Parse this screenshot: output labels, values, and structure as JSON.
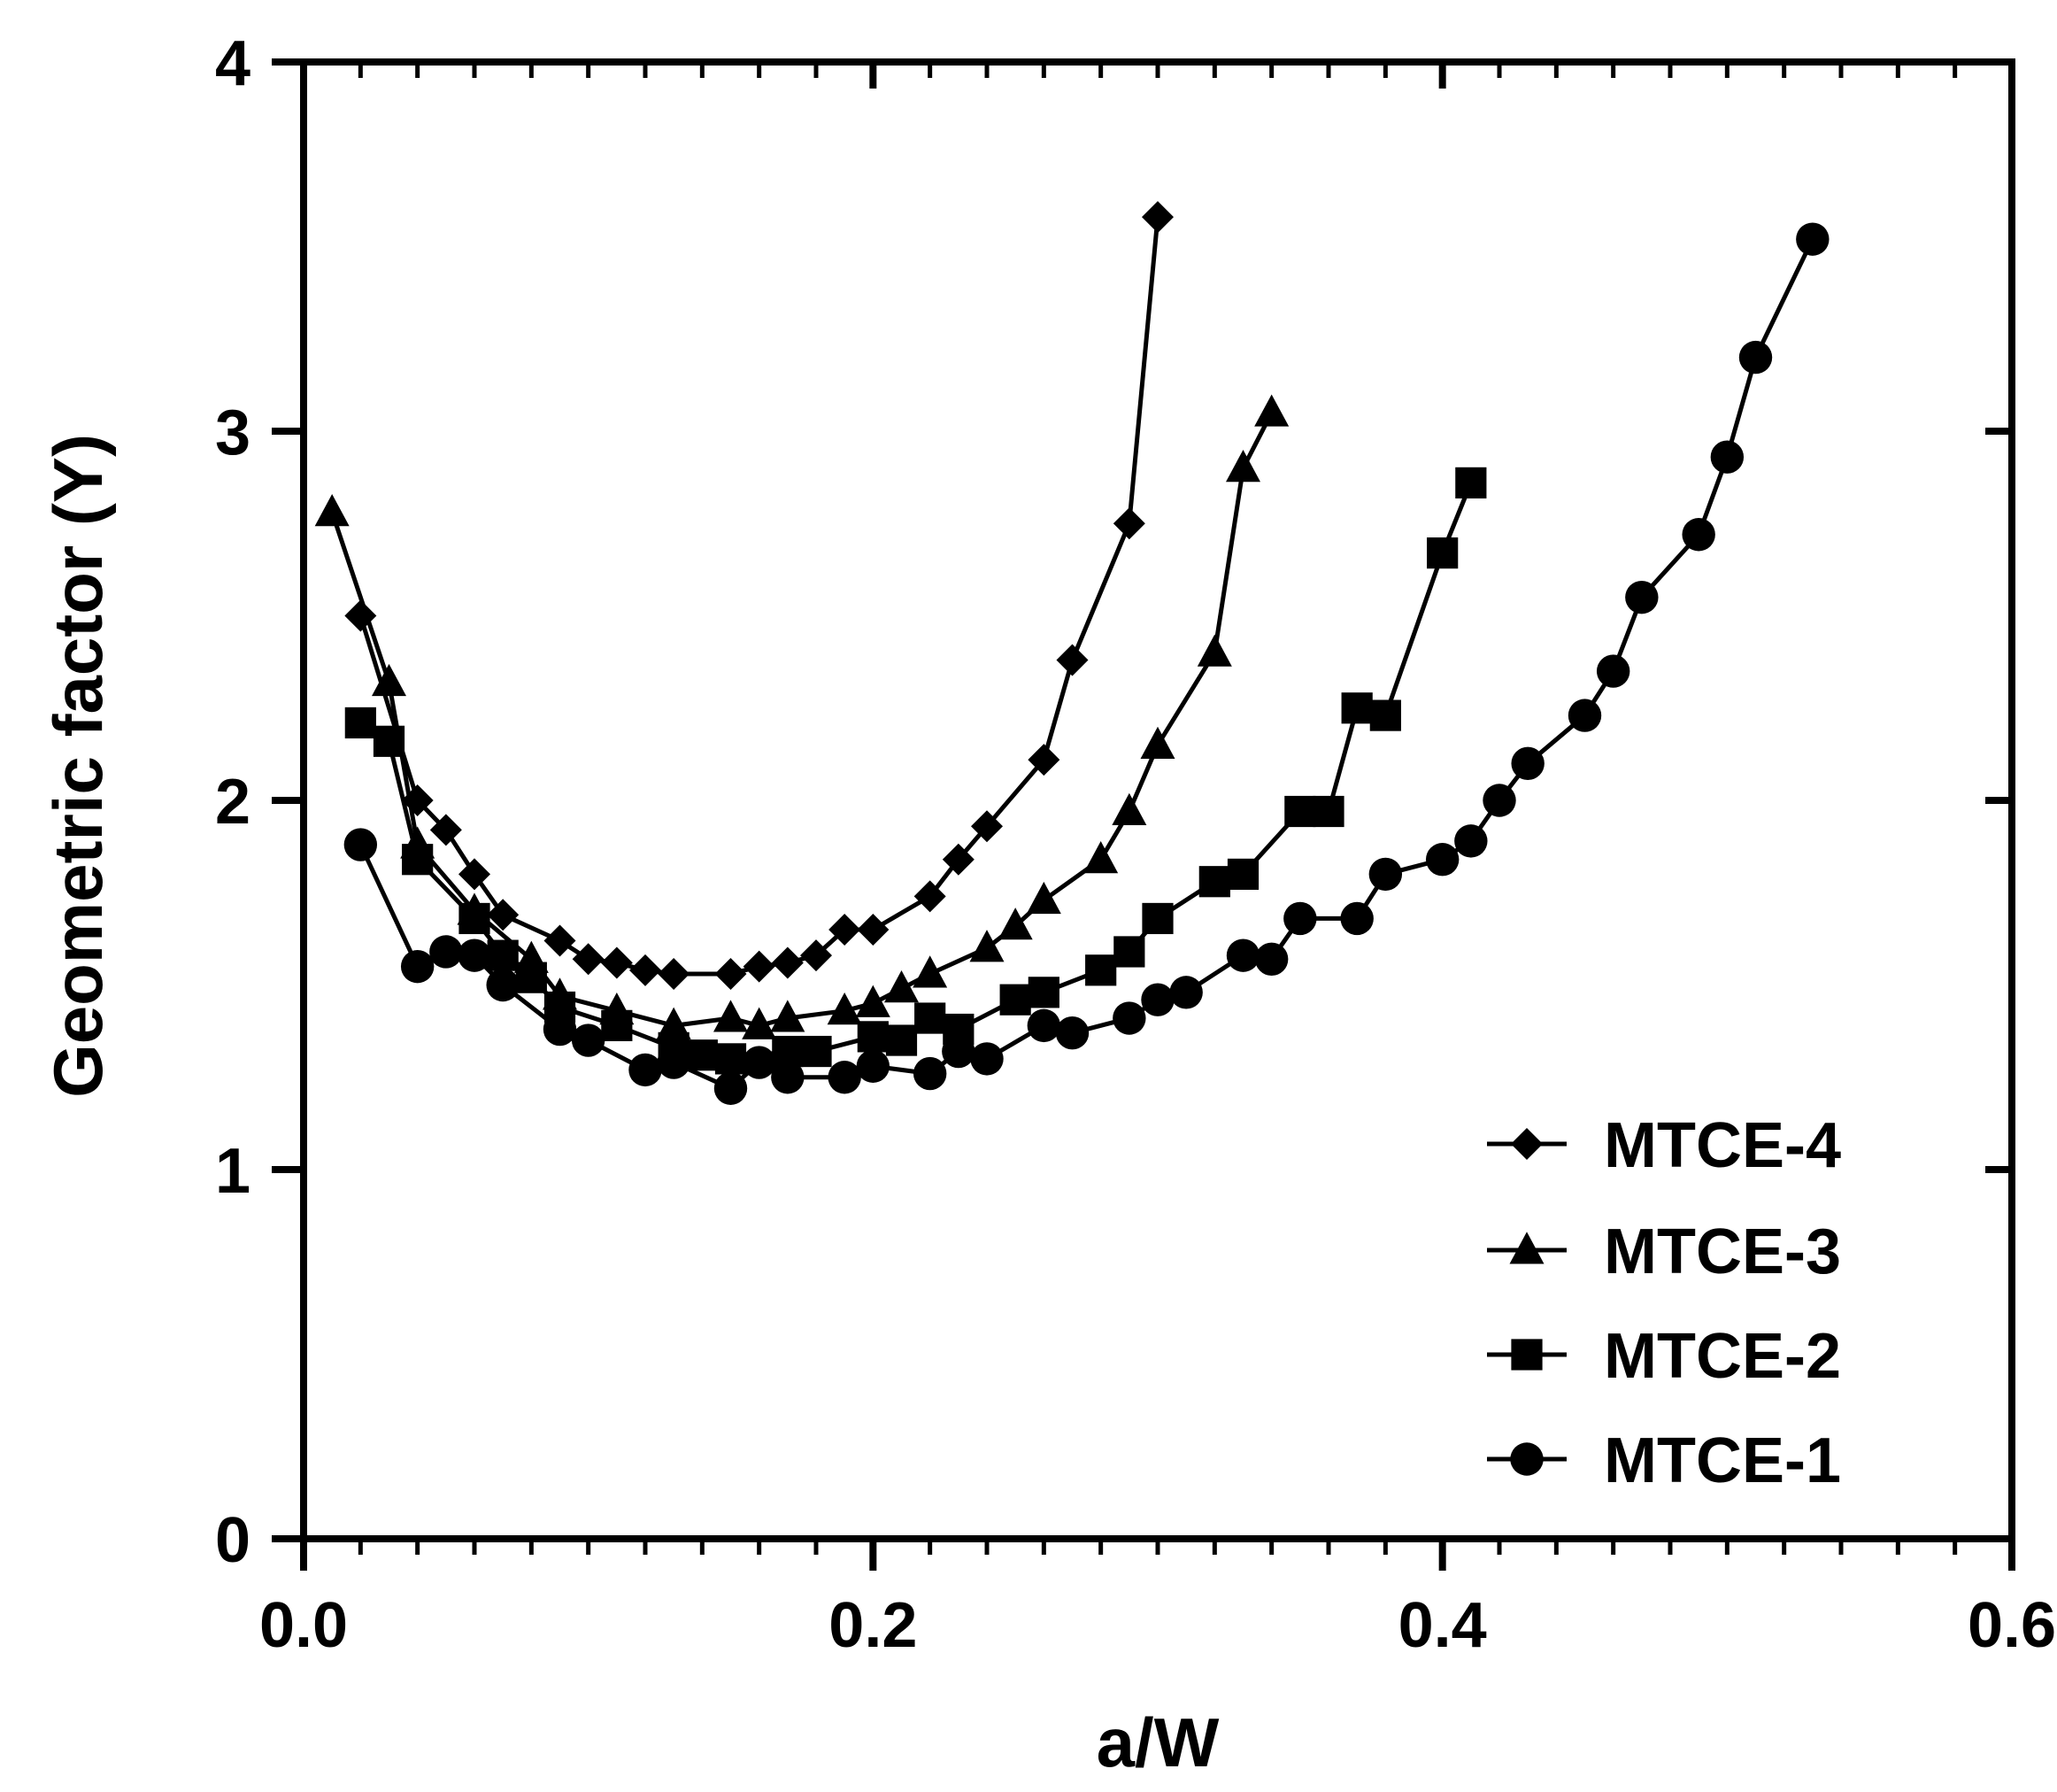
{
  "chart_data": {
    "type": "line",
    "title": "",
    "xlabel": "a/W",
    "ylabel": "Geometric factor (Y)",
    "xlim": [
      0.0,
      0.6
    ],
    "ylim": [
      0,
      4
    ],
    "x_ticks": [
      "0.0",
      "0.2",
      "0.4",
      "0.6"
    ],
    "y_ticks": [
      "0",
      "1",
      "2",
      "3",
      "4"
    ],
    "grid": false,
    "legend_position": "bottom-right",
    "series": [
      {
        "name": "MTCE-4",
        "marker": "diamond",
        "x": [
          0.02,
          0.04,
          0.05,
          0.06,
          0.07,
          0.09,
          0.1,
          0.11,
          0.12,
          0.13,
          0.15,
          0.16,
          0.17,
          0.18,
          0.19,
          0.2,
          0.22,
          0.23,
          0.24,
          0.26,
          0.27,
          0.29,
          0.3
        ],
        "y": [
          2.5,
          2.0,
          1.92,
          1.8,
          1.69,
          1.62,
          1.57,
          1.56,
          1.54,
          1.53,
          1.53,
          1.55,
          1.56,
          1.58,
          1.65,
          1.65,
          1.74,
          1.84,
          1.93,
          2.11,
          2.38,
          2.75,
          3.58
        ]
      },
      {
        "name": "MTCE-3",
        "marker": "triangle",
        "x": [
          0.01,
          0.03,
          0.04,
          0.06,
          0.08,
          0.09,
          0.11,
          0.13,
          0.15,
          0.16,
          0.17,
          0.19,
          0.2,
          0.21,
          0.22,
          0.24,
          0.25,
          0.26,
          0.28,
          0.29,
          0.3,
          0.32,
          0.33,
          0.34
        ],
        "y": [
          2.78,
          2.32,
          1.88,
          1.7,
          1.57,
          1.47,
          1.43,
          1.39,
          1.41,
          1.39,
          1.41,
          1.43,
          1.45,
          1.49,
          1.53,
          1.6,
          1.66,
          1.73,
          1.84,
          1.97,
          2.15,
          2.4,
          2.9,
          3.05
        ]
      },
      {
        "name": "MTCE-2",
        "marker": "square",
        "x": [
          0.02,
          0.03,
          0.04,
          0.06,
          0.07,
          0.08,
          0.09,
          0.11,
          0.13,
          0.14,
          0.15,
          0.17,
          0.18,
          0.2,
          0.21,
          0.22,
          0.23,
          0.25,
          0.26,
          0.28,
          0.29,
          0.3,
          0.32,
          0.33,
          0.35,
          0.36,
          0.37,
          0.38,
          0.4,
          0.41
        ],
        "y": [
          2.21,
          2.16,
          1.84,
          1.68,
          1.58,
          1.52,
          1.44,
          1.39,
          1.33,
          1.31,
          1.3,
          1.32,
          1.32,
          1.36,
          1.35,
          1.41,
          1.38,
          1.46,
          1.48,
          1.54,
          1.59,
          1.68,
          1.78,
          1.8,
          1.97,
          1.97,
          2.25,
          2.23,
          2.67,
          2.86
        ]
      },
      {
        "name": "MTCE-1",
        "marker": "circle",
        "x": [
          0.02,
          0.04,
          0.05,
          0.06,
          0.07,
          0.09,
          0.1,
          0.12,
          0.13,
          0.15,
          0.16,
          0.17,
          0.19,
          0.2,
          0.22,
          0.23,
          0.24,
          0.26,
          0.27,
          0.29,
          0.3,
          0.31,
          0.33,
          0.34,
          0.35,
          0.37,
          0.38,
          0.4,
          0.41,
          0.42,
          0.43,
          0.45,
          0.46,
          0.47,
          0.49,
          0.5,
          0.51,
          0.53
        ],
        "y": [
          1.88,
          1.55,
          1.59,
          1.58,
          1.5,
          1.38,
          1.35,
          1.27,
          1.29,
          1.22,
          1.29,
          1.25,
          1.25,
          1.28,
          1.26,
          1.32,
          1.3,
          1.39,
          1.37,
          1.41,
          1.46,
          1.48,
          1.58,
          1.57,
          1.68,
          1.68,
          1.8,
          1.84,
          1.89,
          2.0,
          2.1,
          2.23,
          2.35,
          2.55,
          2.72,
          2.93,
          3.2,
          3.52
        ]
      }
    ]
  }
}
